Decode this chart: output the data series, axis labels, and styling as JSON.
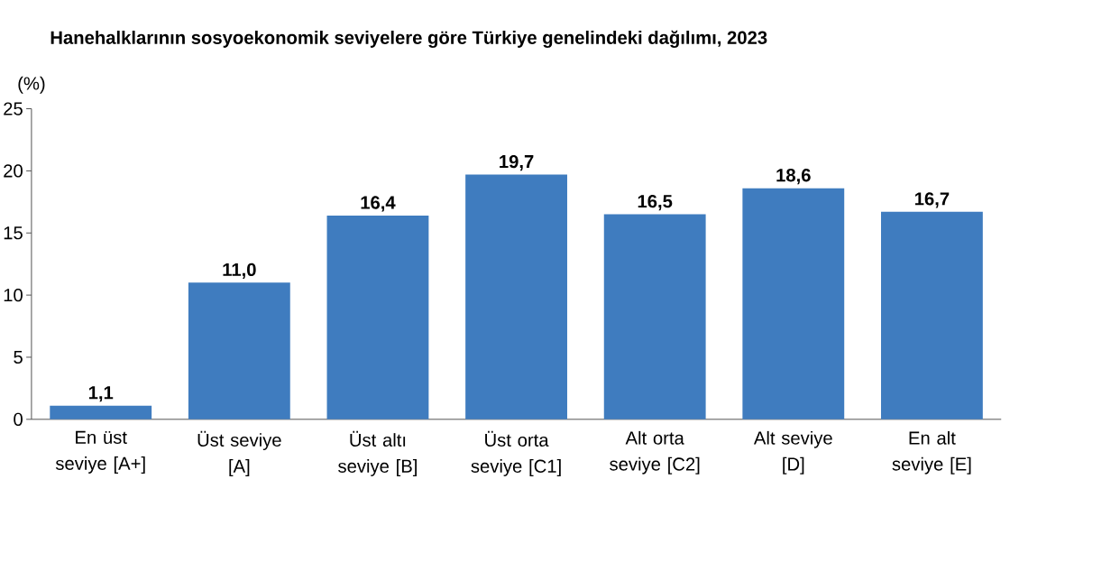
{
  "chart_data": {
    "type": "bar",
    "title": "Hanehalklarının sosyoekonomik seviyelere göre Türkiye genelindeki dağılımı, 2023",
    "ylabel": "(%)",
    "categories": [
      "En üst seviye [A+]",
      "Üst seviye [A]",
      "Üst altı seviye [B]",
      "Üst orta seviye [C1]",
      "Alt orta seviye [C2]",
      "Alt seviye [D]",
      "En alt seviye [E]"
    ],
    "values": [
      1.1,
      11.0,
      16.4,
      19.7,
      16.5,
      18.6,
      16.7
    ],
    "value_labels": [
      "1,1",
      "11,0",
      "16,4",
      "19,7",
      "16,5",
      "18,6",
      "16,7"
    ],
    "color": "#3f7cbf",
    "ylim": [
      0,
      25
    ],
    "yticks": [
      0,
      5,
      10,
      15,
      20,
      25
    ],
    "grid": false
  }
}
